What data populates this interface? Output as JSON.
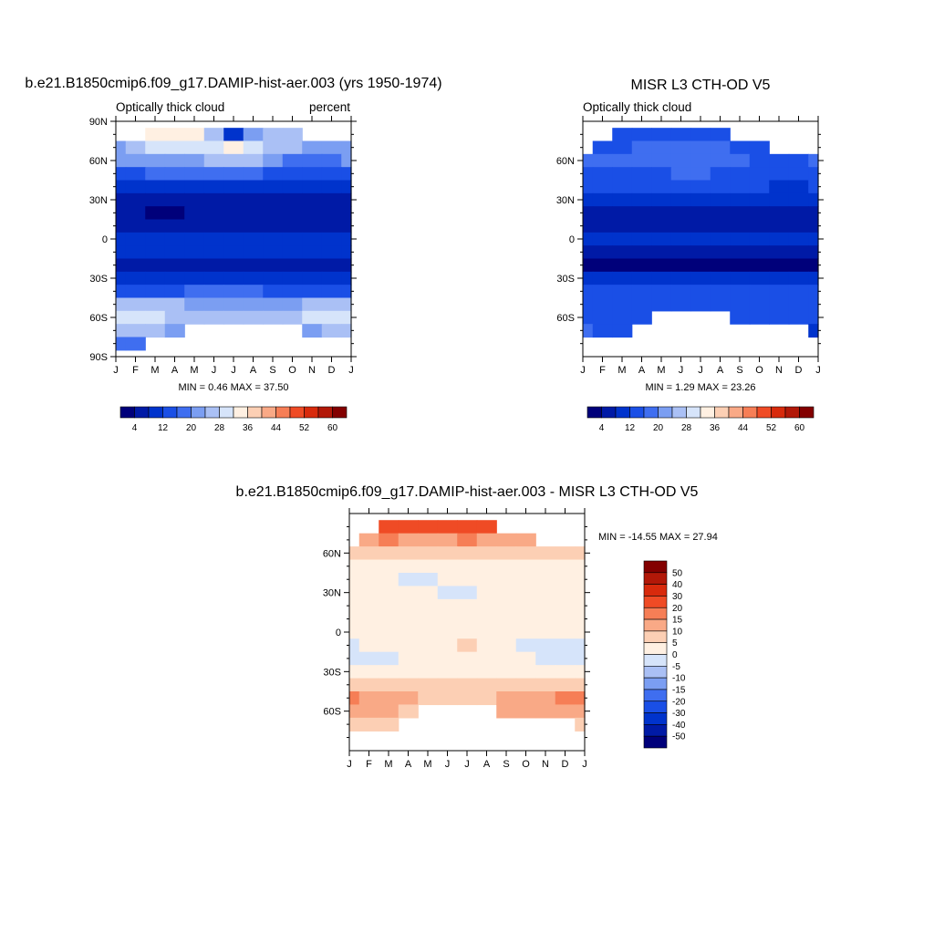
{
  "chart_data": [
    {
      "type": "heatmap",
      "title": "b.e21.B1850cmip6.f09_g17.DAMIP-hist-aer.003 (yrs 1950-1974)",
      "left_label": "Optically thick cloud",
      "right_label": "percent",
      "x_ticks": [
        "J",
        "F",
        "M",
        "A",
        "M",
        "J",
        "J",
        "A",
        "S",
        "O",
        "N",
        "D",
        "J"
      ],
      "y_ticks": [
        "90N",
        "60N",
        "30N",
        "0",
        "30S",
        "60S",
        "90S"
      ],
      "ylim": [
        -90,
        90
      ],
      "minmax_text": "MIN =   0.46 MAX =  37.50",
      "min": 0.46,
      "max": 37.5,
      "colorbar": {
        "levels": [
          4,
          8,
          12,
          16,
          20,
          24,
          28,
          32,
          36,
          40,
          44,
          48,
          52,
          56,
          60
        ],
        "labels": [
          "4",
          "12",
          "20",
          "28",
          "36",
          "44",
          "52",
          "60"
        ],
        "colors": [
          "#00007a",
          "#001aa6",
          "#0033cc",
          "#1a4fe6",
          "#3f6ef0",
          "#7b9ef2",
          "#aac0f5",
          "#d6e4fa",
          "#fff0e2",
          "#fccfb4",
          "#f9a986",
          "#f67e56",
          "#ef4b25",
          "#d82a0c",
          "#b21808",
          "#830000"
        ]
      },
      "rows_lat": [
        80,
        70,
        60,
        50,
        40,
        30,
        20,
        10,
        0,
        -10,
        -20,
        -30,
        -40,
        -50,
        -60,
        -70,
        -80
      ],
      "values": [
        [
          null,
          null,
          35,
          34,
          34,
          24,
          10,
          22,
          24,
          24,
          null,
          null,
          null
        ],
        [
          22,
          24,
          30,
          28,
          28,
          30,
          33,
          30,
          26,
          24,
          22,
          22,
          22
        ],
        [
          20,
          20,
          22,
          22,
          22,
          25,
          27,
          24,
          20,
          19,
          18,
          18,
          20
        ],
        [
          14,
          14,
          16,
          16,
          16,
          18,
          18,
          16,
          14,
          13,
          12,
          12,
          14
        ],
        [
          9,
          9,
          10,
          10,
          10,
          11,
          11,
          10,
          9,
          8,
          8,
          8,
          9
        ],
        [
          6,
          6,
          6,
          6,
          7,
          7,
          7,
          7,
          6,
          6,
          6,
          6,
          6
        ],
        [
          4,
          4,
          3,
          3,
          4,
          4,
          5,
          5,
          4,
          4,
          4,
          4,
          4
        ],
        [
          7,
          7,
          6,
          6,
          7,
          7,
          7,
          7,
          7,
          7,
          7,
          7,
          7
        ],
        [
          9,
          9,
          8,
          8,
          9,
          9,
          9,
          9,
          9,
          9,
          9,
          9,
          9
        ],
        [
          8,
          8,
          8,
          8,
          8,
          8,
          8,
          8,
          8,
          8,
          8,
          8,
          8
        ],
        [
          4,
          4,
          4,
          4,
          5,
          5,
          5,
          5,
          4,
          4,
          4,
          4,
          4
        ],
        [
          9,
          9,
          9,
          9,
          9,
          9,
          9,
          9,
          9,
          9,
          9,
          9,
          9
        ],
        [
          14,
          14,
          15,
          15,
          16,
          16,
          16,
          16,
          15,
          15,
          15,
          15,
          14
        ],
        [
          24,
          26,
          26,
          24,
          22,
          22,
          22,
          22,
          22,
          23,
          24,
          24,
          24
        ],
        [
          30,
          30,
          28,
          26,
          24,
          26,
          26,
          26,
          24,
          26,
          28,
          30,
          30
        ],
        [
          26,
          26,
          24,
          22,
          null,
          null,
          null,
          null,
          null,
          null,
          22,
          24,
          26
        ],
        [
          18,
          18,
          null,
          null,
          null,
          null,
          null,
          null,
          null,
          null,
          null,
          null,
          null
        ]
      ]
    },
    {
      "type": "heatmap",
      "title": "MISR L3 CTH-OD V5",
      "left_label": "Optically thick cloud",
      "x_ticks": [
        "J",
        "F",
        "M",
        "A",
        "M",
        "J",
        "J",
        "A",
        "S",
        "O",
        "N",
        "D",
        "J"
      ],
      "y_ticks": [
        "60N",
        "30N",
        "0",
        "30S",
        "60S"
      ],
      "ylim": [
        -90,
        90
      ],
      "minmax_text": "MIN =   1.29 MAX =  23.26",
      "min": 1.29,
      "max": 23.26,
      "colorbar": {
        "levels": [
          4,
          8,
          12,
          16,
          20,
          24,
          28,
          32,
          36,
          40,
          44,
          48,
          52,
          56,
          60
        ],
        "labels": [
          "4",
          "12",
          "20",
          "28",
          "36",
          "44",
          "52",
          "60"
        ],
        "colors": [
          "#00007a",
          "#001aa6",
          "#0033cc",
          "#1a4fe6",
          "#3f6ef0",
          "#7b9ef2",
          "#aac0f5",
          "#d6e4fa",
          "#fff0e2",
          "#fccfb4",
          "#f9a986",
          "#f67e56",
          "#ef4b25",
          "#d82a0c",
          "#b21808",
          "#830000"
        ]
      },
      "rows_lat": [
        80,
        70,
        60,
        50,
        40,
        30,
        20,
        10,
        0,
        -10,
        -20,
        -30,
        -40,
        -50,
        -60,
        -70,
        -80
      ],
      "values": [
        [
          null,
          null,
          12,
          12,
          14,
          14,
          14,
          12,
          null,
          null,
          null,
          null,
          null
        ],
        [
          null,
          14,
          15,
          16,
          16,
          16,
          16,
          16,
          14,
          13,
          null,
          null,
          null
        ],
        [
          16,
          16,
          16,
          17,
          17,
          18,
          18,
          17,
          16,
          15,
          15,
          15,
          16
        ],
        [
          14,
          14,
          14,
          15,
          15,
          16,
          16,
          15,
          14,
          14,
          13,
          13,
          14
        ],
        [
          12,
          12,
          12,
          13,
          13,
          14,
          14,
          13,
          12,
          12,
          11,
          11,
          12
        ],
        [
          9,
          9,
          9,
          9,
          10,
          10,
          10,
          10,
          9,
          9,
          9,
          9,
          9
        ],
        [
          6,
          6,
          6,
          6,
          7,
          7,
          7,
          7,
          6,
          6,
          6,
          6,
          6
        ],
        [
          7,
          7,
          7,
          7,
          7,
          7,
          7,
          7,
          7,
          7,
          7,
          7,
          7
        ],
        [
          9,
          9,
          9,
          9,
          9,
          9,
          9,
          9,
          9,
          9,
          9,
          9,
          9
        ],
        [
          7,
          7,
          7,
          7,
          7,
          7,
          7,
          7,
          7,
          7,
          7,
          7,
          7
        ],
        [
          3,
          3,
          3,
          3,
          3,
          3,
          3,
          3,
          3,
          3,
          3,
          3,
          3
        ],
        [
          8,
          8,
          8,
          8,
          8,
          8,
          8,
          8,
          8,
          8,
          8,
          8,
          8
        ],
        [
          12,
          12,
          12,
          12,
          12,
          12,
          12,
          12,
          12,
          12,
          12,
          12,
          12
        ],
        [
          14,
          14,
          14,
          13,
          13,
          13,
          13,
          13,
          13,
          14,
          14,
          14,
          14
        ],
        [
          15,
          15,
          15,
          14,
          null,
          null,
          null,
          null,
          14,
          15,
          15,
          15,
          15
        ],
        [
          16,
          15,
          15,
          null,
          null,
          null,
          null,
          null,
          null,
          null,
          null,
          null,
          8
        ],
        [
          null,
          null,
          null,
          null,
          null,
          null,
          null,
          null,
          null,
          null,
          null,
          null,
          null
        ]
      ]
    },
    {
      "type": "heatmap",
      "title": "b.e21.B1850cmip6.f09_g17.DAMIP-hist-aer.003 - MISR L3 CTH-OD V5",
      "x_ticks": [
        "J",
        "F",
        "M",
        "A",
        "M",
        "J",
        "J",
        "A",
        "S",
        "O",
        "N",
        "D",
        "J"
      ],
      "y_ticks": [
        "60N",
        "30N",
        "0",
        "30S",
        "60S"
      ],
      "ylim": [
        -90,
        90
      ],
      "minmax_text": "MIN = -14.55 MAX =  27.94",
      "min": -14.55,
      "max": 27.94,
      "colorbar": {
        "levels": [
          50,
          40,
          30,
          20,
          15,
          10,
          5,
          0,
          -5,
          -10,
          -15,
          -20,
          -30,
          -40,
          -50
        ],
        "labels": [
          "50",
          "40",
          "30",
          "20",
          "15",
          "10",
          "5",
          "0",
          "-5",
          "-10",
          "-15",
          "-20",
          "-30",
          "-40",
          "-50"
        ],
        "colors": [
          "#830000",
          "#b21808",
          "#d82a0c",
          "#ef4b25",
          "#f67e56",
          "#f9a986",
          "#fccfb4",
          "#fff0e2",
          "#d6e4fa",
          "#aac0f5",
          "#7b9ef2",
          "#3f6ef0",
          "#1a4fe6",
          "#0033cc",
          "#001aa6",
          "#00007a"
        ]
      },
      "rows_lat": [
        80,
        70,
        60,
        50,
        40,
        30,
        20,
        10,
        0,
        -10,
        -20,
        -30,
        -40,
        -50,
        -60,
        -70,
        -80
      ],
      "values": [
        [
          null,
          null,
          22,
          22,
          20,
          24,
          24,
          20,
          null,
          null,
          null,
          null,
          null
        ],
        [
          null,
          14,
          16,
          13,
          12,
          14,
          16,
          14,
          12,
          12,
          null,
          null,
          null
        ],
        [
          8,
          8,
          8,
          7,
          7,
          8,
          8,
          8,
          6,
          6,
          6,
          6,
          7
        ],
        [
          3,
          3,
          3,
          3,
          3,
          3,
          3,
          3,
          3,
          3,
          3,
          3,
          3
        ],
        [
          2,
          2,
          1,
          -1,
          -2,
          1,
          2,
          1,
          2,
          2,
          2,
          2,
          2
        ],
        [
          3,
          3,
          3,
          3,
          2,
          -2,
          -3,
          2,
          3,
          3,
          3,
          3,
          3
        ],
        [
          1,
          1,
          1,
          1,
          1,
          1,
          1,
          1,
          1,
          1,
          1,
          1,
          1
        ],
        [
          3,
          3,
          3,
          3,
          3,
          3,
          3,
          3,
          3,
          3,
          3,
          3,
          3
        ],
        [
          2,
          2,
          2,
          2,
          2,
          2,
          2,
          3,
          3,
          2,
          2,
          2,
          2
        ],
        [
          -2,
          1,
          2,
          2,
          2,
          2,
          6,
          2,
          1,
          -2,
          -3,
          -3,
          -2
        ],
        [
          -2,
          -2,
          -1,
          1,
          1,
          1,
          1,
          1,
          1,
          1,
          -1,
          -2,
          -2
        ],
        [
          4,
          4,
          4,
          4,
          4,
          4,
          4,
          4,
          4,
          4,
          4,
          4,
          4
        ],
        [
          8,
          8,
          7,
          7,
          6,
          6,
          6,
          6,
          6,
          7,
          8,
          8,
          8
        ],
        [
          16,
          14,
          12,
          10,
          9,
          8,
          8,
          9,
          10,
          12,
          14,
          16,
          16
        ],
        [
          13,
          12,
          11,
          9,
          null,
          null,
          null,
          null,
          10,
          11,
          12,
          13,
          13
        ],
        [
          9,
          8,
          7,
          null,
          null,
          null,
          null,
          null,
          null,
          null,
          null,
          null,
          5
        ],
        [
          null,
          null,
          null,
          null,
          null,
          null,
          null,
          null,
          null,
          null,
          null,
          null,
          null
        ]
      ]
    }
  ]
}
